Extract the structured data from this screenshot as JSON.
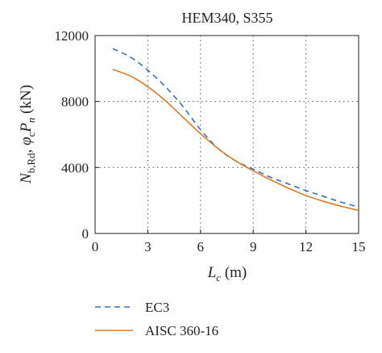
{
  "chart_data": {
    "type": "line",
    "title": "HEM340, S355",
    "xlabel": "L_c (m)",
    "ylabel": "N_b,Rd, φ_c P_n (kN)",
    "xlim": [
      0,
      15
    ],
    "ylim": [
      0,
      12000
    ],
    "xticks": [
      0,
      3,
      6,
      9,
      12,
      15
    ],
    "yticks": [
      0,
      4000,
      8000,
      12000
    ],
    "grid": true,
    "legend_position": "bottom-left, outside plot",
    "series": [
      {
        "name": "EC3",
        "style": "dashed",
        "color": "#3a6fc4",
        "x": [
          1,
          2,
          3,
          4,
          5,
          6,
          7,
          8,
          9,
          10,
          11,
          12,
          13,
          14,
          15
        ],
        "y": [
          11200,
          10700,
          9900,
          8900,
          7700,
          6300,
          5150,
          4400,
          3900,
          3400,
          3000,
          2600,
          2250,
          1900,
          1600
        ]
      },
      {
        "name": "AISC 360-16",
        "style": "solid",
        "color": "#e07b24",
        "x": [
          1,
          2,
          3,
          4,
          5,
          6,
          7,
          8,
          9,
          10,
          11,
          12,
          13,
          14,
          15
        ],
        "y": [
          9950,
          9550,
          8900,
          8050,
          7050,
          6050,
          5150,
          4400,
          3800,
          3250,
          2750,
          2300,
          1950,
          1650,
          1400
        ]
      }
    ]
  }
}
